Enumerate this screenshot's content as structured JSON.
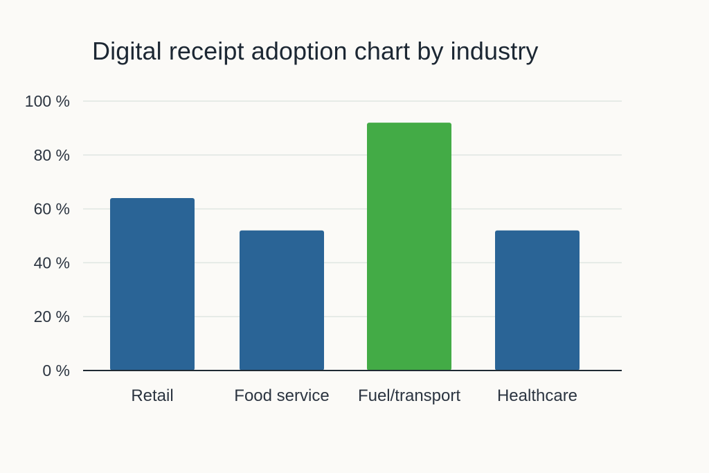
{
  "chart_data": {
    "type": "bar",
    "title": "Digital receipt adoption chart by industry",
    "xlabel": "",
    "ylabel": "",
    "ylim": [
      0,
      100
    ],
    "yticks": [
      0,
      20,
      40,
      60,
      80,
      100
    ],
    "ytick_labels": [
      "0 %",
      "20 %",
      "40 %",
      "60 %",
      "80 %",
      "100 %"
    ],
    "categories": [
      "Retail",
      "Food service",
      "Fuel/transport",
      "Healthcare"
    ],
    "values": [
      64,
      52,
      92,
      52
    ],
    "bar_colors": [
      "#2a6496",
      "#2a6496",
      "#43ab46",
      "#2a6496"
    ],
    "grid": true
  },
  "colors": {
    "background": "#fbfaf7",
    "gridline": "#dfe6e2",
    "axis": "#1f2a33",
    "text": "#2b3440"
  }
}
